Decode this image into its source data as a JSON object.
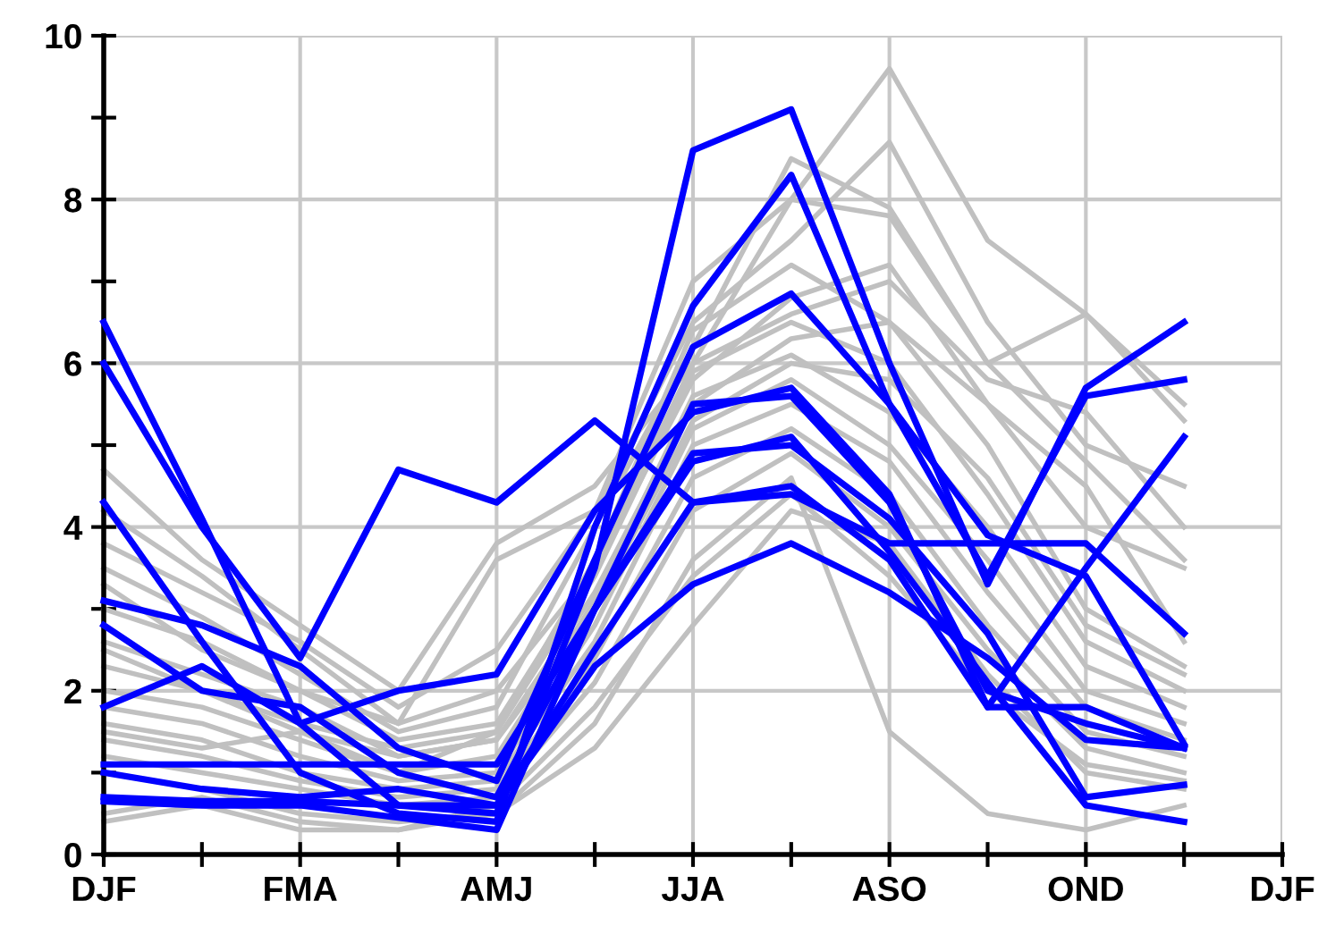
{
  "chart_data": {
    "type": "line",
    "categories": [
      "DJF",
      null,
      "FMA",
      null,
      "AMJ",
      null,
      "JJA",
      null,
      "ASO",
      null,
      "OND",
      null,
      "DJF"
    ],
    "ylim": [
      0,
      10
    ],
    "yticks": [
      0,
      {
        "value": 1,
        "label": null
      },
      2,
      {
        "value": 3,
        "label": null
      },
      4,
      {
        "value": 5,
        "label": null
      },
      6,
      {
        "value": 7,
        "label": null
      },
      8,
      {
        "value": 9,
        "label": null
      },
      10
    ],
    "grid": true,
    "marker": "none",
    "line_style": "solid",
    "series": [
      {
        "color": "#c0c0c0",
        "values": [
          4.7,
          3.6,
          2.8,
          2.0,
          3.8,
          4.5,
          6.0,
          8.0,
          9.6,
          7.5,
          6.6,
          5.3,
          null
        ]
      },
      {
        "color": "#c0c0c0",
        "values": [
          3.8,
          3.2,
          2.6,
          1.8,
          2.5,
          4.2,
          6.5,
          7.5,
          8.7,
          6.5,
          5.0,
          4.5,
          null
        ]
      },
      {
        "color": "#c0c0c0",
        "values": [
          3.5,
          2.9,
          2.2,
          1.5,
          1.8,
          4.0,
          6.2,
          8.5,
          7.9,
          6.0,
          6.6,
          5.5,
          null
        ]
      },
      {
        "color": "#c0c0c0",
        "values": [
          3.0,
          2.6,
          2.0,
          1.4,
          1.6,
          3.5,
          5.8,
          6.8,
          7.2,
          5.5,
          4.0,
          3.5,
          null
        ]
      },
      {
        "color": "#c0c0c0",
        "values": [
          2.6,
          2.2,
          1.8,
          1.2,
          1.4,
          3.2,
          5.5,
          6.3,
          6.5,
          5.0,
          3.0,
          2.3,
          null
        ]
      },
      {
        "color": "#c0c0c0",
        "values": [
          2.3,
          2.0,
          1.6,
          1.3,
          1.5,
          3.4,
          5.9,
          6.5,
          6.0,
          4.4,
          2.6,
          2.0,
          null
        ]
      },
      {
        "color": "#c0c0c0",
        "values": [
          2.0,
          1.8,
          1.4,
          1.0,
          1.2,
          3.1,
          5.6,
          6.1,
          5.4,
          4.0,
          2.3,
          1.8,
          null
        ]
      },
      {
        "color": "#c0c0c0",
        "values": [
          1.8,
          1.6,
          1.2,
          0.9,
          1.0,
          2.8,
          5.2,
          5.8,
          5.0,
          3.6,
          2.0,
          1.6,
          null
        ]
      },
      {
        "color": "#c0c0c0",
        "values": [
          1.6,
          1.4,
          1.0,
          0.8,
          0.9,
          2.6,
          5.0,
          5.5,
          4.8,
          3.2,
          1.8,
          1.4,
          null
        ]
      },
      {
        "color": "#c0c0c0",
        "values": [
          1.4,
          1.2,
          0.9,
          0.7,
          0.8,
          2.4,
          4.6,
          5.2,
          4.4,
          2.8,
          1.5,
          1.2,
          null
        ]
      },
      {
        "color": "#c0c0c0",
        "values": [
          1.2,
          1.0,
          0.8,
          0.6,
          0.7,
          2.1,
          4.2,
          4.9,
          4.0,
          2.5,
          1.3,
          1.0,
          null
        ]
      },
      {
        "color": "#c0c0c0",
        "values": [
          1.0,
          0.8,
          0.5,
          0.4,
          0.5,
          1.6,
          3.6,
          4.6,
          1.5,
          0.5,
          0.3,
          0.6,
          null
        ]
      },
      {
        "color": "#c0c0c0",
        "values": [
          0.5,
          0.7,
          0.4,
          0.3,
          0.5,
          1.3,
          2.8,
          4.2,
          3.8,
          2.2,
          1.0,
          0.8,
          null
        ]
      },
      {
        "color": "#c0c0c0",
        "values": [
          0.4,
          0.6,
          0.3,
          0.3,
          0.6,
          1.8,
          3.4,
          4.4,
          3.4,
          2.0,
          1.1,
          0.9,
          null
        ]
      },
      {
        "color": "#c0c0c0",
        "values": [
          4.2,
          3.4,
          2.5,
          1.6,
          3.6,
          4.2,
          7.0,
          8.0,
          7.8,
          6.0,
          4.8,
          3.6,
          null
        ]
      },
      {
        "color": "#c0c0c0",
        "values": [
          2.5,
          2.0,
          1.5,
          1.0,
          1.5,
          3.6,
          6.4,
          7.2,
          6.5,
          5.5,
          4.5,
          2.6,
          null
        ]
      },
      {
        "color": "#c0c0c0",
        "values": [
          1.5,
          1.3,
          1.5,
          1.2,
          1.4,
          3.0,
          5.3,
          6.0,
          5.8,
          4.6,
          2.8,
          2.2,
          null
        ]
      },
      {
        "color": "#c0c0c0",
        "values": [
          3.3,
          2.5,
          2.0,
          1.6,
          2.0,
          3.5,
          6.0,
          6.6,
          7.0,
          5.8,
          5.4,
          4.0,
          null
        ]
      },
      {
        "color": "#0000ff",
        "values": [
          6.5,
          4.1,
          1.6,
          0.6,
          0.5,
          3.5,
          8.6,
          9.1,
          6.0,
          3.3,
          5.7,
          6.5,
          null
        ]
      },
      {
        "color": "#0000ff",
        "values": [
          6.0,
          4.0,
          2.4,
          4.7,
          4.3,
          5.3,
          4.3,
          4.4,
          3.8,
          3.8,
          3.8,
          2.7,
          null
        ]
      },
      {
        "color": "#0000ff",
        "values": [
          4.3,
          2.6,
          1.0,
          0.5,
          0.4,
          4.0,
          6.7,
          8.3,
          5.5,
          3.4,
          5.6,
          5.8,
          null
        ]
      },
      {
        "color": "#0000ff",
        "values": [
          3.1,
          2.8,
          2.3,
          1.3,
          0.9,
          3.6,
          6.2,
          6.85,
          5.5,
          3.9,
          3.4,
          1.35,
          null
        ]
      },
      {
        "color": "#0000ff",
        "values": [
          2.8,
          2.0,
          1.8,
          1.0,
          0.7,
          3.0,
          5.5,
          5.6,
          4.3,
          2.0,
          1.6,
          1.3,
          null
        ]
      },
      {
        "color": "#0000ff",
        "values": [
          1.8,
          2.3,
          1.6,
          2.0,
          2.2,
          4.2,
          5.4,
          5.7,
          4.4,
          1.8,
          3.5,
          5.1,
          null
        ]
      },
      {
        "color": "#0000ff",
        "values": [
          1.1,
          1.1,
          1.1,
          1.1,
          1.1,
          3.0,
          4.9,
          5.0,
          4.1,
          2.7,
          0.7,
          0.85,
          null
        ]
      },
      {
        "color": "#0000ff",
        "values": [
          1.0,
          0.8,
          0.7,
          0.8,
          0.6,
          2.5,
          4.3,
          4.5,
          3.6,
          1.8,
          1.8,
          1.3,
          null
        ]
      },
      {
        "color": "#0000ff",
        "values": [
          0.7,
          0.65,
          0.65,
          0.6,
          0.6,
          2.3,
          3.3,
          3.8,
          3.2,
          2.4,
          1.4,
          1.3,
          null
        ]
      },
      {
        "color": "#0000ff",
        "values": [
          0.65,
          0.6,
          0.6,
          0.45,
          0.3,
          3.0,
          4.8,
          5.1,
          3.7,
          2.1,
          0.6,
          0.4,
          null
        ]
      }
    ]
  }
}
